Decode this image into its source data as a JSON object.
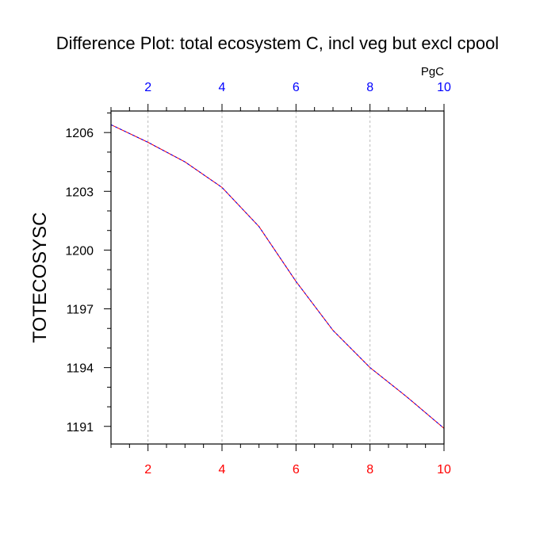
{
  "chart_data": {
    "type": "line",
    "title": "Difference Plot: total ecosystem C, incl veg but excl cpool",
    "units": "PgC",
    "ylabel": "TOTECOSYSC",
    "xlabel": "",
    "xlim": [
      1,
      10
    ],
    "ylim": [
      1190.1,
      1207.1
    ],
    "x_ticks": [
      2,
      4,
      6,
      8,
      10
    ],
    "y_ticks": [
      1191,
      1194,
      1197,
      1200,
      1203,
      1206
    ],
    "grid": "vertical dashed",
    "x": [
      1,
      2,
      3,
      4,
      5,
      6,
      7,
      8,
      9,
      10
    ],
    "series": [
      {
        "values": [
          1206.4,
          1205.5,
          1204.5,
          1203.2,
          1201.2,
          1198.4,
          1195.9,
          1194.0,
          1192.5,
          1190.9
        ]
      }
    ],
    "colors": {
      "line_a": "#ff0000",
      "line_b": "#0000ff",
      "bottom_ticks": "#ff0000",
      "top_ticks": "#0000ff",
      "grid": "#bbbbbb"
    }
  }
}
